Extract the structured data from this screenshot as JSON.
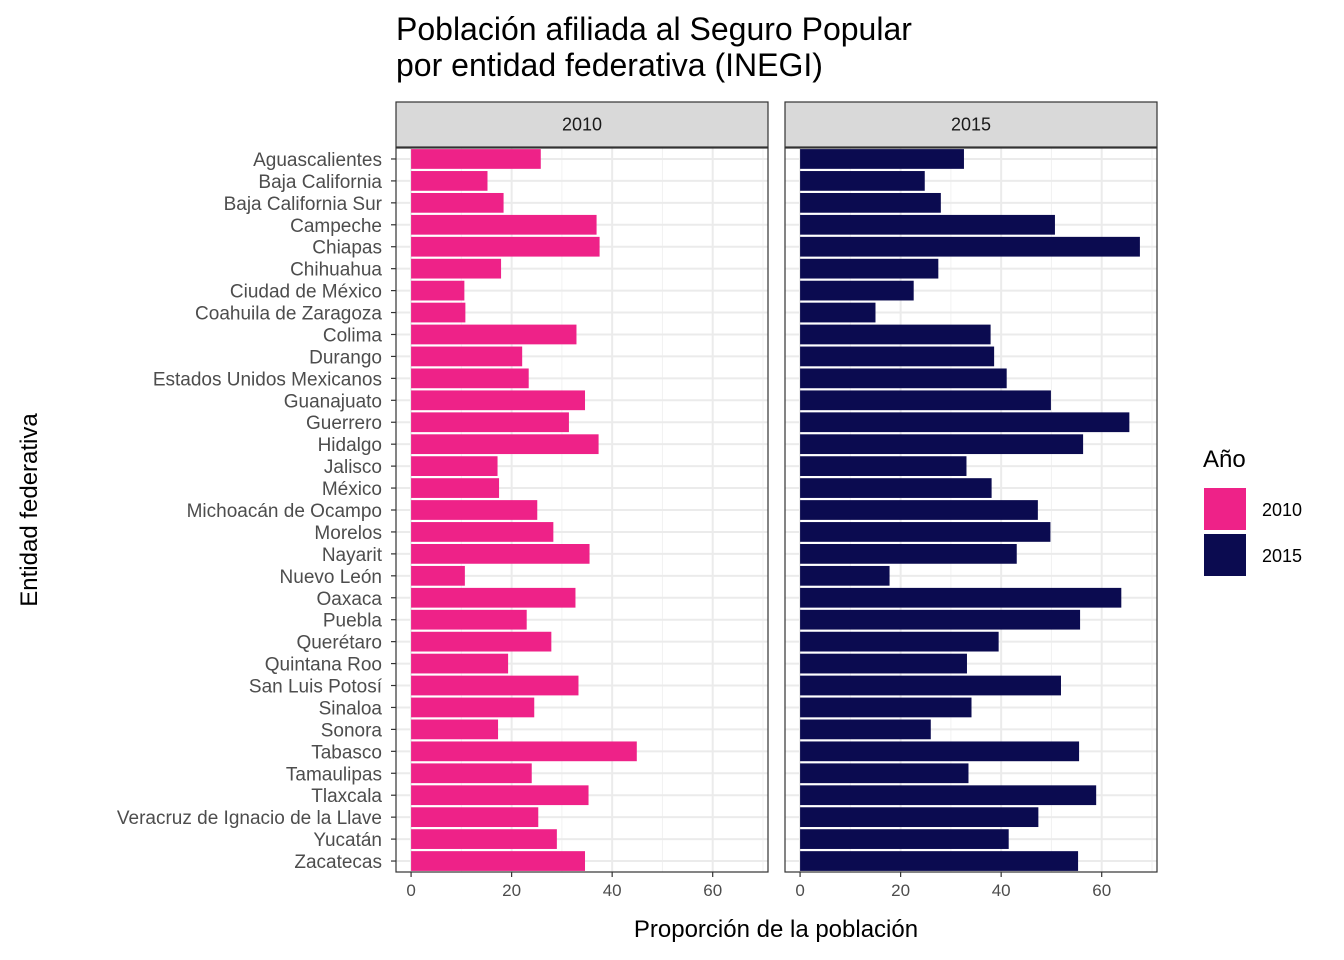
{
  "chart_data": {
    "type": "bar",
    "orientation": "horizontal",
    "title": "Población afiliada al Seguro Popular\npor entidad federativa (INEGI)",
    "xlabel": "Proporción de la población",
    "ylabel": "Entidad federativa",
    "xlim": [
      -3,
      71
    ],
    "xticks": [
      0,
      20,
      40,
      60
    ],
    "grid": true,
    "legend": {
      "title": "Año",
      "position": "right"
    },
    "categories": [
      "Aguascalientes",
      "Baja California",
      "Baja California Sur",
      "Campeche",
      "Chiapas",
      "Chihuahua",
      "Ciudad de México",
      "Coahuila de Zaragoza",
      "Colima",
      "Durango",
      "Estados Unidos Mexicanos",
      "Guanajuato",
      "Guerrero",
      "Hidalgo",
      "Jalisco",
      "México",
      "Michoacán de Ocampo",
      "Morelos",
      "Nayarit",
      "Nuevo León",
      "Oaxaca",
      "Puebla",
      "Querétaro",
      "Quintana Roo",
      "San Luis Potosí",
      "Sinaloa",
      "Sonora",
      "Tabasco",
      "Tamaulipas",
      "Tlaxcala",
      "Veracruz de Ignacio de la Llave",
      "Yucatán",
      "Zacatecas"
    ],
    "series": [
      {
        "name": "2010",
        "color": "#EE2288",
        "values": [
          25.8,
          15.2,
          18.4,
          36.9,
          37.5,
          17.9,
          10.6,
          10.8,
          32.9,
          22.1,
          23.4,
          34.6,
          31.4,
          37.3,
          17.2,
          17.5,
          25.1,
          28.3,
          35.5,
          10.7,
          32.7,
          23.0,
          27.9,
          19.3,
          33.3,
          24.5,
          17.3,
          44.9,
          24.0,
          35.3,
          25.3,
          29.0,
          34.6
        ]
      },
      {
        "name": "2015",
        "color": "#0B0B50",
        "values": [
          32.6,
          24.8,
          28.0,
          50.7,
          67.6,
          27.5,
          22.6,
          15.0,
          37.9,
          38.6,
          41.1,
          49.9,
          65.5,
          56.3,
          33.1,
          38.1,
          47.3,
          49.8,
          43.1,
          17.8,
          63.9,
          55.7,
          39.5,
          33.2,
          51.9,
          34.1,
          26.0,
          55.5,
          33.5,
          58.9,
          47.4,
          41.5,
          55.3
        ]
      }
    ]
  }
}
